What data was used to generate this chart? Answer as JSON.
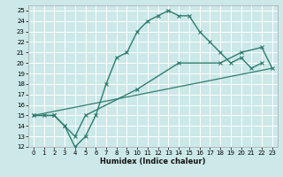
{
  "xlabel": "Humidex (Indice chaleur)",
  "bg_color": "#cce8e8",
  "grid_color": "#ffffff",
  "line_color": "#2e7d6e",
  "xlim": [
    -0.5,
    23.5
  ],
  "ylim": [
    12,
    25.5
  ],
  "xticks": [
    0,
    1,
    2,
    3,
    4,
    5,
    6,
    7,
    8,
    9,
    10,
    11,
    12,
    13,
    14,
    15,
    16,
    17,
    18,
    19,
    20,
    21,
    22,
    23
  ],
  "yticks": [
    12,
    13,
    14,
    15,
    16,
    17,
    18,
    19,
    20,
    21,
    22,
    23,
    24,
    25
  ],
  "line1_x": [
    0,
    1,
    2,
    3,
    4,
    5,
    6,
    7,
    8,
    9,
    10,
    11,
    12,
    13,
    14,
    15,
    16,
    17,
    18,
    19,
    20,
    21,
    22
  ],
  "line1_y": [
    15,
    15,
    15,
    14,
    12,
    13,
    15,
    18,
    20.5,
    21,
    23,
    24,
    24.5,
    25,
    24.5,
    24.5,
    23,
    22,
    21,
    20,
    20.5,
    19.5,
    20
  ],
  "line2_x": [
    0,
    2,
    3,
    4,
    5,
    10,
    14,
    18,
    20,
    22,
    23
  ],
  "line2_y": [
    15,
    15,
    14,
    13,
    15,
    17.5,
    20,
    20,
    21,
    21.5,
    19.5
  ],
  "line3_x": [
    0,
    23
  ],
  "line3_y": [
    15,
    19.5
  ]
}
